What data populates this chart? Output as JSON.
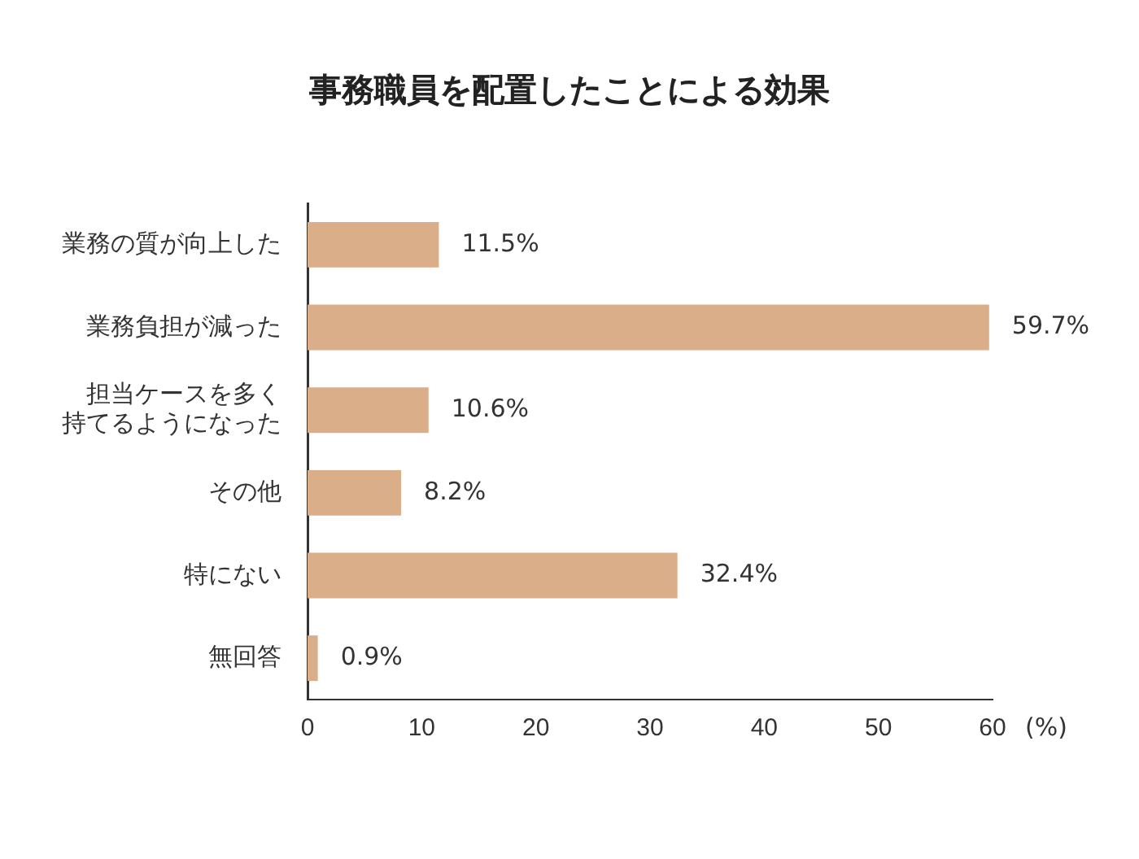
{
  "chart_data": {
    "type": "bar",
    "orientation": "horizontal",
    "title": "事務職員を配置したことによる効果",
    "xlabel": "(%)",
    "categories": [
      "業務の質が向上した",
      "業務負担が減った",
      "担当ケースを多く持てるようになった",
      "その他",
      "特にない",
      "無回答"
    ],
    "values": [
      11.5,
      59.7,
      10.6,
      8.2,
      32.4,
      0.9
    ],
    "value_labels": [
      "11.5%",
      "59.7%",
      "10.6%",
      "8.2%",
      "32.4%",
      "0.9%"
    ],
    "color": "#d9ae88",
    "xlim": [
      0,
      60
    ],
    "xticks": [
      0,
      10,
      20,
      30,
      40,
      50,
      60
    ],
    "grid": false,
    "legend": false
  }
}
